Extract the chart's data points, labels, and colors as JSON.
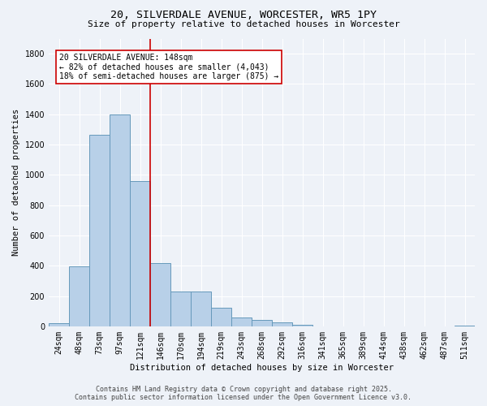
{
  "title": "20, SILVERDALE AVENUE, WORCESTER, WR5 1PY",
  "subtitle": "Size of property relative to detached houses in Worcester",
  "xlabel": "Distribution of detached houses by size in Worcester",
  "ylabel": "Number of detached properties",
  "categories": [
    "24sqm",
    "48sqm",
    "73sqm",
    "97sqm",
    "121sqm",
    "146sqm",
    "170sqm",
    "194sqm",
    "219sqm",
    "243sqm",
    "268sqm",
    "292sqm",
    "316sqm",
    "341sqm",
    "365sqm",
    "389sqm",
    "414sqm",
    "438sqm",
    "462sqm",
    "487sqm",
    "511sqm"
  ],
  "values": [
    20,
    395,
    1265,
    1400,
    960,
    415,
    230,
    230,
    120,
    60,
    40,
    25,
    10,
    0,
    0,
    0,
    0,
    0,
    0,
    0,
    5
  ],
  "bar_color": "#b8d0e8",
  "bar_edge_color": "#6699bb",
  "vline_x_index": 4,
  "vline_color": "#cc0000",
  "annotation_text": "20 SILVERDALE AVENUE: 148sqm\n← 82% of detached houses are smaller (4,043)\n18% of semi-detached houses are larger (875) →",
  "annotation_box_color": "white",
  "annotation_box_edge": "#cc0000",
  "ylim": [
    0,
    1900
  ],
  "yticks": [
    0,
    200,
    400,
    600,
    800,
    1000,
    1200,
    1400,
    1600,
    1800
  ],
  "footer_line1": "Contains HM Land Registry data © Crown copyright and database right 2025.",
  "footer_line2": "Contains public sector information licensed under the Open Government Licence v3.0.",
  "background_color": "#eef2f8",
  "grid_color": "#ffffff",
  "title_fontsize": 9.5,
  "subtitle_fontsize": 8,
  "axis_label_fontsize": 7.5,
  "tick_fontsize": 7,
  "footer_fontsize": 6
}
